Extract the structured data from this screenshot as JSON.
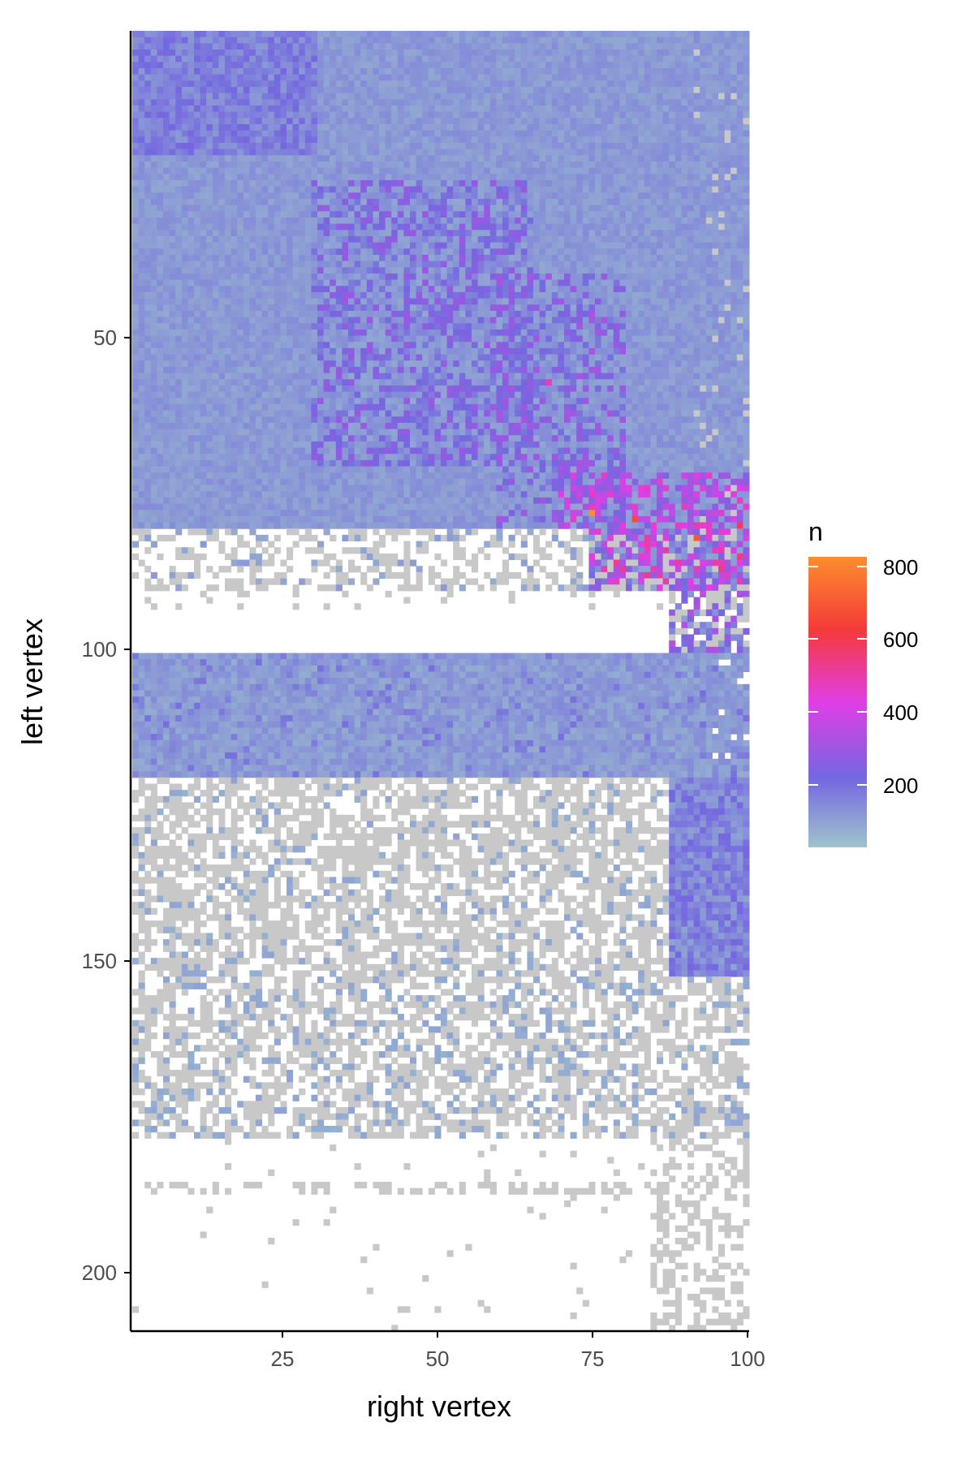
{
  "chart_data": {
    "type": "heatmap",
    "title": "",
    "xlabel": "right vertex",
    "ylabel": "left vertex",
    "xlim": [
      1,
      100
    ],
    "ylim": [
      1,
      209
    ],
    "y_reversed": true,
    "x_ticks": [
      25,
      50,
      75,
      100
    ],
    "y_ticks": [
      50,
      100,
      150,
      200
    ],
    "x_tick_labels": [
      "25",
      "50",
      "75",
      "100"
    ],
    "y_tick_labels": [
      "50",
      "100",
      "150",
      "200"
    ],
    "missing_color": "#c8c8c8",
    "grid": false,
    "legend": {
      "title": "n",
      "position": "right",
      "min": 1,
      "max": 810,
      "ticks": [
        200,
        400,
        600,
        800
      ],
      "tick_labels": [
        "200",
        "400",
        "600",
        "800"
      ],
      "colors": [
        "#9ec4cc",
        "#7467e0",
        "#e03ee6",
        "#f53a3a",
        "#fc8d2c"
      ]
    },
    "regions": [
      {
        "rows": [
          1,
          37
        ],
        "cols": [
          1,
          100
        ],
        "typical_n": 90,
        "note": "upper-left blocks up to ~200"
      },
      {
        "rows": [
          38,
          80
        ],
        "cols": [
          1,
          100
        ],
        "typical_n": 110,
        "note": "block structure cols 30-75 up to ~250"
      },
      {
        "rows": [
          75,
          95
        ],
        "cols": [
          75,
          100
        ],
        "typical_n": 380,
        "note": "hot spots near diagonal up to ~810"
      },
      {
        "rows": [
          81,
          90
        ],
        "cols": [
          1,
          100
        ],
        "typical_n": null,
        "note": "mostly white/grey"
      },
      {
        "rows": [
          91,
          100
        ],
        "cols": [
          1,
          88
        ],
        "typical_n": null,
        "note": "no data (white)"
      },
      {
        "rows": [
          101,
          120
        ],
        "cols": [
          1,
          100
        ],
        "typical_n": 70
      },
      {
        "rows": [
          121,
          152
        ],
        "cols": [
          88,
          100
        ],
        "typical_n": 130
      },
      {
        "rows": [
          121,
          178
        ],
        "cols": [
          1,
          88
        ],
        "typical_n": null,
        "note": "sparse grey with light teal"
      },
      {
        "rows": [
          179,
          209
        ],
        "cols": [
          1,
          100
        ],
        "typical_n": null,
        "note": "mostly empty; grey cells right side"
      }
    ],
    "hot_cells": [
      {
        "x": 75,
        "y": 78,
        "n": 810
      },
      {
        "x": 82,
        "y": 79,
        "n": 650
      },
      {
        "x": 92,
        "y": 82,
        "n": 680
      },
      {
        "x": 68,
        "y": 57,
        "n": 450
      },
      {
        "x": 92,
        "y": 80,
        "n": 480
      },
      {
        "x": 99,
        "y": 80,
        "n": 560
      },
      {
        "x": 99,
        "y": 85,
        "n": 520
      },
      {
        "x": 85,
        "y": 80,
        "n": 430
      },
      {
        "x": 96,
        "y": 86,
        "n": 470
      }
    ]
  }
}
